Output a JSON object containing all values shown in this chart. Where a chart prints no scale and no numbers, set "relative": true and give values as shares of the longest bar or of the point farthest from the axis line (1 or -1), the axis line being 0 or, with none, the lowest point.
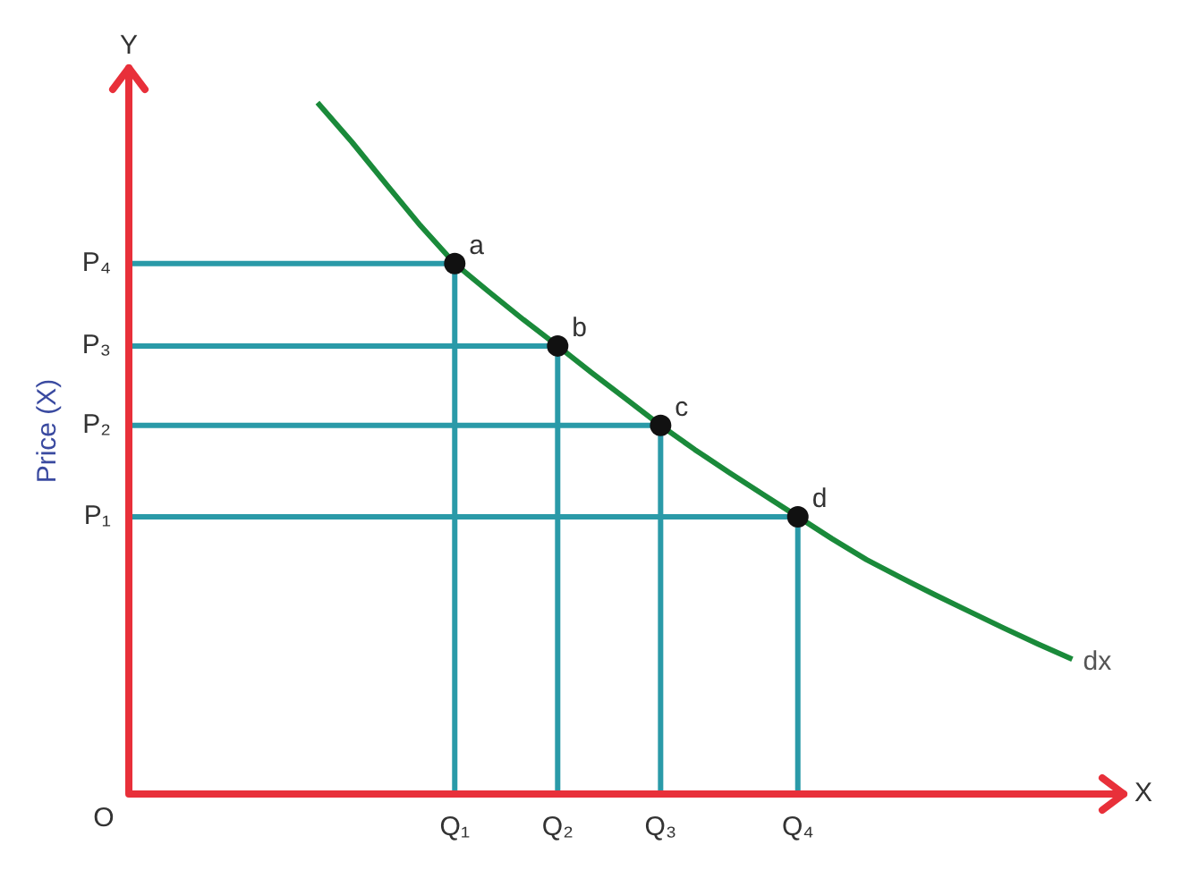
{
  "chart_data": {
    "type": "line",
    "relative": true,
    "ylabel": "Price (X)",
    "categories": [
      null,
      null,
      null,
      null,
      null,
      null,
      null,
      null,
      null,
      "Q₁",
      null,
      null,
      "Q₂",
      null,
      null,
      "Q₃",
      null,
      null,
      null,
      "Q₄",
      null,
      null,
      null,
      null,
      null,
      null,
      null,
      null,
      null
    ],
    "series": [
      {
        "name": "dx",
        "color": "#1a8a3a",
        "values": [
          null,
          null,
          null,
          null,
          null,
          1.0,
          0.943,
          0.882,
          0.822,
          0.767,
          0.726,
          0.686,
          0.648,
          0.609,
          0.571,
          0.533,
          0.498,
          0.465,
          0.433,
          0.401,
          0.369,
          0.339,
          0.313,
          0.288,
          0.264,
          0.24,
          0.217,
          0.195,
          null
        ]
      }
    ],
    "annotations": [
      {
        "text": "a",
        "x": "Q₁",
        "y": 0.767
      },
      {
        "text": "b",
        "x": "Q₂",
        "y": 0.648
      },
      {
        "text": "c",
        "x": "Q₃",
        "y": 0.533
      },
      {
        "text": "d",
        "x": "Q₄",
        "y": 0.401
      },
      "P₁",
      "P₂",
      "P₃",
      "P₄",
      "Y",
      "O",
      "X"
    ],
    "legend": false
  }
}
